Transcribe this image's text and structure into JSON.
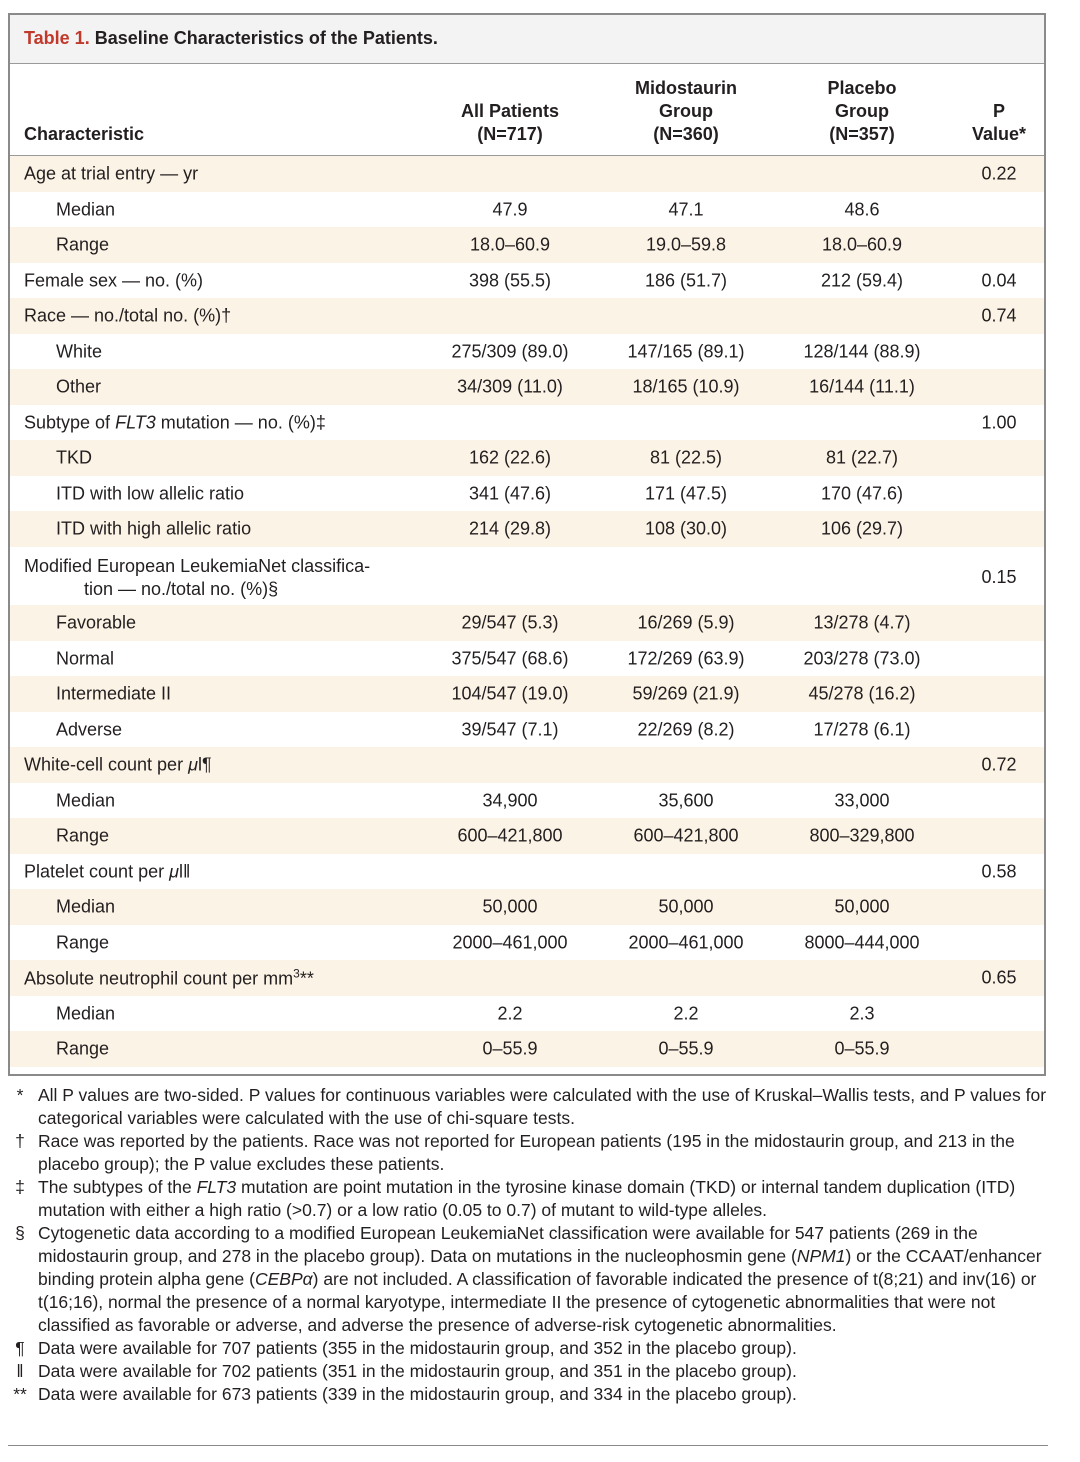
{
  "table": {
    "title_prefix": "Table 1.",
    "title_text": "Baseline Characteristics of the Patients.",
    "headers": {
      "characteristic": "Characteristic",
      "all": [
        "All Patients",
        "(N=717)"
      ],
      "midostaurin": [
        "Midostaurin",
        "Group",
        "(N=360)"
      ],
      "placebo": [
        "Placebo",
        "Group",
        "(N=357)"
      ],
      "p": [
        "P",
        "Value*"
      ]
    },
    "rows": [
      {
        "label": "Age at trial entry — yr",
        "c1": "",
        "c2": "",
        "c3": "",
        "p": "0.22"
      },
      {
        "label": "Median",
        "c1": "47.9",
        "c2": "47.1",
        "c3": "48.6",
        "p": ""
      },
      {
        "label": "Range",
        "c1": "18.0–60.9",
        "c2": "19.0–59.8",
        "c3": "18.0–60.9",
        "p": ""
      },
      {
        "label": "Female sex — no. (%)",
        "c1": "398 (55.5)",
        "c2": "186 (51.7)",
        "c3": "212 (59.4)",
        "p": "0.04"
      },
      {
        "label": "Race — no./total no. (%)†",
        "c1": "",
        "c2": "",
        "c3": "",
        "p": "0.74"
      },
      {
        "label": "White",
        "c1": "275/309 (89.0)",
        "c2": "147/165 (89.1)",
        "c3": "128/144 (88.9)",
        "p": ""
      },
      {
        "label": "Other",
        "c1": "34/309 (11.0)",
        "c2": "18/165 (10.9)",
        "c3": "16/144 (11.1)",
        "p": ""
      },
      {
        "label_pre": "Subtype of ",
        "label_em": "FLT3",
        "label_post": " mutation — no. (%)‡",
        "c1": "",
        "c2": "",
        "c3": "",
        "p": "1.00"
      },
      {
        "label": "TKD",
        "c1": "162 (22.6)",
        "c2": "81 (22.5)",
        "c3": "81 (22.7)",
        "p": ""
      },
      {
        "label": "ITD with low allelic ratio",
        "c1": "341 (47.6)",
        "c2": "171 (47.5)",
        "c3": "170 (47.6)",
        "p": ""
      },
      {
        "label": "ITD with high allelic ratio",
        "c1": "214 (29.8)",
        "c2": "108 (30.0)",
        "c3": "106 (29.7)",
        "p": ""
      },
      {
        "label_line1": "Modified European LeukemiaNet classifica-",
        "label_line2": "tion — no./total no. (%)§",
        "c1": "",
        "c2": "",
        "c3": "",
        "p": "0.15"
      },
      {
        "label": "Favorable",
        "c1": "29/547 (5.3)",
        "c2": "16/269 (5.9)",
        "c3": "13/278 (4.7)",
        "p": ""
      },
      {
        "label": "Normal",
        "c1": "375/547 (68.6)",
        "c2": "172/269 (63.9)",
        "c3": "203/278 (73.0)",
        "p": ""
      },
      {
        "label": "Intermediate II",
        "c1": "104/547 (19.0)",
        "c2": "59/269 (21.9)",
        "c3": "45/278 (16.2)",
        "p": ""
      },
      {
        "label": "Adverse",
        "c1": "39/547 (7.1)",
        "c2": "22/269 (8.2)",
        "c3": "17/278 (6.1)",
        "p": ""
      },
      {
        "label_pre": "White-cell count per ",
        "label_em": "μ",
        "label_post": "l¶",
        "c1": "",
        "c2": "",
        "c3": "",
        "p": "0.72"
      },
      {
        "label": "Median",
        "c1": "34,900",
        "c2": "35,600",
        "c3": "33,000",
        "p": ""
      },
      {
        "label": "Range",
        "c1": "600–421,800",
        "c2": "600–421,800",
        "c3": "800–329,800",
        "p": ""
      },
      {
        "label_pre": "Platelet count per ",
        "label_em": "μ",
        "label_post": "l‖",
        "c1": "",
        "c2": "",
        "c3": "",
        "p": "0.58"
      },
      {
        "label": "Median",
        "c1": "50,000",
        "c2": "50,000",
        "c3": "50,000",
        "p": ""
      },
      {
        "label": "Range",
        "c1": "2000–461,000",
        "c2": "2000–461,000",
        "c3": "8000–444,000",
        "p": ""
      },
      {
        "label_pre": "Absolute neutrophil count per mm",
        "label_sup": "3",
        "label_post": "**",
        "c1": "",
        "c2": "",
        "c3": "",
        "p": "0.65"
      },
      {
        "label": "Median",
        "c1": "2.2",
        "c2": "2.2",
        "c3": "2.3",
        "p": ""
      },
      {
        "label": "Range",
        "c1": "0–55.9",
        "c2": "0–55.9",
        "c3": "0–55.9",
        "p": ""
      }
    ]
  },
  "footnotes": [
    {
      "sym": "*",
      "text": "All P values are two-sided. P values for continuous variables were calculated with the use of Kruskal–Wallis tests, and P values for categorical variables were calculated with the use of chi-square tests."
    },
    {
      "sym": "†",
      "text": "Race was reported by the patients. Race was not reported for European patients (195 in the midostaurin group, and 213 in the placebo group); the P value excludes these patients."
    },
    {
      "sym": "‡",
      "pre": "The subtypes of the ",
      "em": "FLT3",
      "post": " mutation are point mutation in the tyrosine kinase domain (TKD) or internal tandem dupli­cation (ITD) mutation with either a high ratio (>0.7) or a low ratio (0.05 to 0.7) of mutant to wild-type alleles."
    },
    {
      "sym": "§",
      "pre": "Cytogenetic data according to a modified European LeukemiaNet classification were available for 547 patients (269 in the midostaurin group, and 278 in the placebo group). Data on mutations in the nucleophosmin gene (",
      "em": "NPM1",
      "mid": ") or the CCAAT/enhancer binding protein alpha gene (",
      "em2": "CEBPα",
      "post": ") are not included. A classification of favorable indicated the presence of t(8;21) and inv(16) or t(16;16), normal the presence of a normal karyotype, intermediate II the presence of cytogenetic abnormalities that were not classified as favorable or adverse, and adverse the presence of adverse-risk cytogenetic abnormalities."
    },
    {
      "sym": "¶",
      "text": "Data were available for 707 patients (355 in the midostaurin group, and 352 in the placebo group)."
    },
    {
      "sym": "‖",
      "text": "Data were available for 702 patients (351 in the midostaurin group, and 351 in the placebo group)."
    },
    {
      "sym": "**",
      "text": "Data were available for 673 patients (339 in the midostaurin group, and 334 in the placebo group)."
    }
  ]
}
